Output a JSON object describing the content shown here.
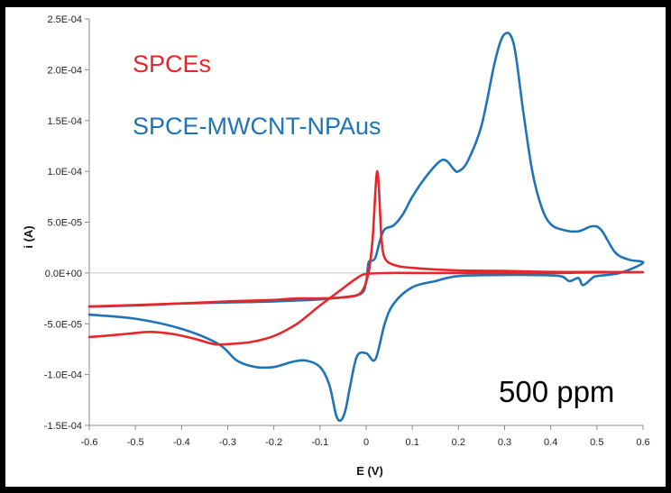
{
  "chart_data": {
    "type": "line",
    "title": "",
    "xlabel": "E (V)",
    "ylabel": "i (A)",
    "xlim": [
      -0.6,
      0.6
    ],
    "ylim": [
      -0.00015,
      0.00025
    ],
    "x_ticks": [
      "-0.6",
      "-0.5",
      "-0.4",
      "-0.3",
      "-0.2",
      "-0.1",
      "0",
      "0.1",
      "0.2",
      "0.3",
      "0.4",
      "0.5",
      "0.6"
    ],
    "y_ticks": [
      "2.5E-04",
      "2.0E-04",
      "1.5E-04",
      "1.0E-04",
      "5.0E-05",
      "0.0E+00",
      "-5.0E-05",
      "-1.0E-04",
      "-1.5E-04"
    ],
    "grid": false,
    "legend_placement": "top-left",
    "annotation": "500 ppm",
    "series": [
      {
        "name": "SPCEs",
        "color": "#e8262a",
        "points": [
          [
            -0.6,
            -3.3e-05
          ],
          [
            -0.5,
            -3.15e-05
          ],
          [
            -0.4,
            -3e-05
          ],
          [
            -0.3,
            -2.8e-05
          ],
          [
            -0.2,
            -2.65e-05
          ],
          [
            -0.15,
            -2.5e-05
          ],
          [
            -0.1,
            -2.5e-05
          ],
          [
            -0.05,
            -2.4e-05
          ],
          [
            -0.02,
            -2.2e-05
          ],
          [
            -0.005,
            -1.5e-05
          ],
          [
            0.005,
            0.0
          ],
          [
            0.01,
            1.5e-05
          ],
          [
            0.015,
            4e-05
          ],
          [
            0.02,
            8e-05
          ],
          [
            0.024,
            0.0001
          ],
          [
            0.028,
            8e-05
          ],
          [
            0.033,
            3.5e-05
          ],
          [
            0.04,
            1.5e-05
          ],
          [
            0.06,
            8e-06
          ],
          [
            0.1,
            5e-06
          ],
          [
            0.2,
            2.5e-06
          ],
          [
            0.3,
            2e-06
          ],
          [
            0.4,
            1e-06
          ],
          [
            0.5,
            1e-06
          ],
          [
            0.6,
            8e-07
          ],
          [
            0.5,
            5e-07
          ],
          [
            0.4,
            0.0
          ],
          [
            0.3,
            0.0
          ],
          [
            0.2,
            0.0
          ],
          [
            0.1,
            0.0
          ],
          [
            0.05,
            0.0
          ],
          [
            0.0,
            -1e-06
          ],
          [
            -0.02,
            -5e-06
          ],
          [
            -0.05,
            -1.5e-05
          ],
          [
            -0.1,
            -3.2e-05
          ],
          [
            -0.15,
            -5e-05
          ],
          [
            -0.2,
            -6.2e-05
          ],
          [
            -0.25,
            -6.8e-05
          ],
          [
            -0.3,
            -7e-05
          ],
          [
            -0.33,
            -7e-05
          ],
          [
            -0.37,
            -6.5e-05
          ],
          [
            -0.42,
            -6e-05
          ],
          [
            -0.47,
            -5.8e-05
          ],
          [
            -0.52,
            -6e-05
          ],
          [
            -0.57,
            -6.2e-05
          ],
          [
            -0.6,
            -6.3e-05
          ]
        ]
      },
      {
        "name": "SPCE-MWCNT-NPAus",
        "color": "#1f73b7",
        "points": [
          [
            -0.6,
            -3.3e-05
          ],
          [
            -0.5,
            -3.2e-05
          ],
          [
            -0.4,
            -3e-05
          ],
          [
            -0.3,
            -2.9e-05
          ],
          [
            -0.2,
            -2.8e-05
          ],
          [
            -0.1,
            -2.6e-05
          ],
          [
            -0.05,
            -2.4e-05
          ],
          [
            -0.01,
            -2e-05
          ],
          [
            0.0,
            -8e-06
          ],
          [
            0.005,
            1e-05
          ],
          [
            0.012,
            1.2e-05
          ],
          [
            0.02,
            1.5e-05
          ],
          [
            0.03,
            3.2e-05
          ],
          [
            0.04,
            4.3e-05
          ],
          [
            0.06,
            4.7e-05
          ],
          [
            0.08,
            5.8e-05
          ],
          [
            0.1,
            7.5e-05
          ],
          [
            0.13,
            9.5e-05
          ],
          [
            0.16,
            0.00011
          ],
          [
            0.175,
            0.00011
          ],
          [
            0.19,
            0.000102
          ],
          [
            0.2,
            0.0001
          ],
          [
            0.22,
            0.00011
          ],
          [
            0.25,
            0.000145
          ],
          [
            0.28,
            0.00021
          ],
          [
            0.3,
            0.000235
          ],
          [
            0.32,
            0.000225
          ],
          [
            0.34,
            0.00016
          ],
          [
            0.36,
            0.0001
          ],
          [
            0.38,
            6.5e-05
          ],
          [
            0.4,
            4.8e-05
          ],
          [
            0.43,
            4.2e-05
          ],
          [
            0.46,
            4.1e-05
          ],
          [
            0.49,
            4.6e-05
          ],
          [
            0.51,
            4.2e-05
          ],
          [
            0.54,
            2e-05
          ],
          [
            0.57,
            1.3e-05
          ],
          [
            0.6,
            1e-05
          ],
          [
            0.55,
            0.0
          ],
          [
            0.5,
            -3e-06
          ],
          [
            0.49,
            -5e-06
          ],
          [
            0.47,
            -1.2e-05
          ],
          [
            0.46,
            -5e-06
          ],
          [
            0.44,
            -8e-06
          ],
          [
            0.42,
            -3e-06
          ],
          [
            0.35,
            -2e-06
          ],
          [
            0.3,
            -2e-06
          ],
          [
            0.2,
            -3e-06
          ],
          [
            0.15,
            -8e-06
          ],
          [
            0.1,
            -1.4e-05
          ],
          [
            0.06,
            -3e-05
          ],
          [
            0.04,
            -5e-05
          ],
          [
            0.02,
            -8.5e-05
          ],
          [
            0.0,
            -7.9e-05
          ],
          [
            -0.02,
            -8.2e-05
          ],
          [
            -0.035,
            -0.000112
          ],
          [
            -0.045,
            -0.000135
          ],
          [
            -0.055,
            -0.000145
          ],
          [
            -0.065,
            -0.00014
          ],
          [
            -0.08,
            -0.00011
          ],
          [
            -0.1,
            -9.25e-05
          ],
          [
            -0.13,
            -8.62e-05
          ],
          [
            -0.16,
            -8.75e-05
          ],
          [
            -0.2,
            -9.25e-05
          ],
          [
            -0.24,
            -9.25e-05
          ],
          [
            -0.28,
            -8.62e-05
          ],
          [
            -0.32,
            -7e-05
          ],
          [
            -0.4,
            -5.5e-05
          ],
          [
            -0.5,
            -4.5e-05
          ],
          [
            -0.6,
            -4.1e-05
          ]
        ]
      }
    ]
  }
}
